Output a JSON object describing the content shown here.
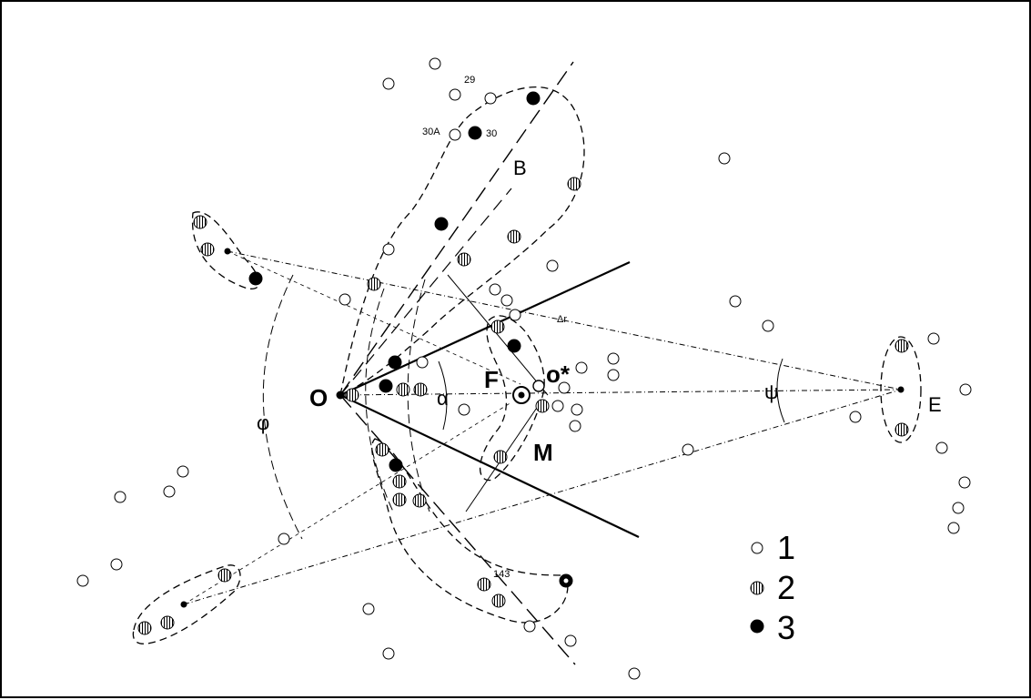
{
  "labels": {
    "o": "O",
    "b": "B",
    "f": "F",
    "o_star": "o*",
    "m": "M",
    "e": "E",
    "alpha": "α",
    "delta_r": "Δr",
    "phi": "φ",
    "psi": "ψ",
    "n29": "29",
    "n30": "30",
    "n30a": "30A",
    "n143": "143"
  },
  "legend": {
    "items": [
      {
        "label": "1",
        "style": "open"
      },
      {
        "label": "2",
        "style": "hatched"
      },
      {
        "label": "3",
        "style": "filled"
      }
    ]
  },
  "colors": {
    "ink": "#000000",
    "paper": "#ffffff"
  }
}
